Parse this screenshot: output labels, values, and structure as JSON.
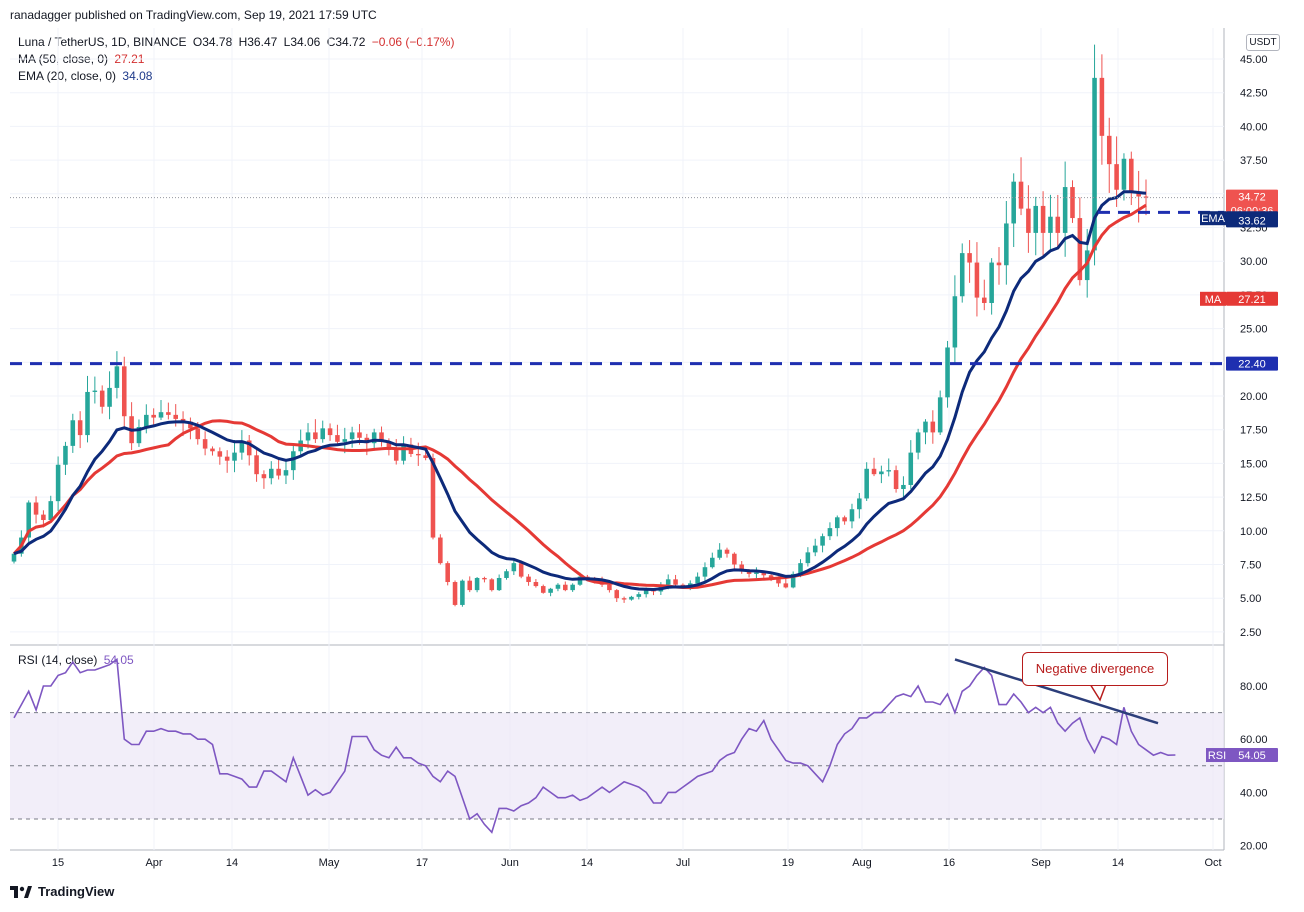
{
  "publisher": "ranadagger published on TradingView.com, Sep 19, 2021 17:59 UTC",
  "footer_logo_text": "TradingView",
  "currency_badge": "USDT",
  "legend": {
    "symbol": "Luna / TetherUS, 1D, BINANCE",
    "o": "O34.78",
    "h": "H36.47",
    "l": "L34.06",
    "c": "C34.72",
    "chg": "−0.06 (−0.17%)",
    "ma_label": "MA (50, close, 0)",
    "ma_value": "27.21",
    "ema_label": "EMA (20, close, 0)",
    "ema_value": "34.08",
    "rsi_label": "RSI (14, close)",
    "rsi_value": "54.05"
  },
  "annotation": "Negative divergence",
  "colors": {
    "up": "#26a69a",
    "down": "#ef5350",
    "ma": "#e53935",
    "ema": "#0d2a7a",
    "rsi": "#7e57c2",
    "rsi_band": "#ede7f6",
    "level": "#1e2fb0",
    "trendline": "#2c3e7a"
  },
  "chart_data": [
    {
      "type": "candlestick",
      "title": "Luna / TetherUS, 1D, BINANCE",
      "x_ticks": [
        "15",
        "Apr",
        "14",
        "May",
        "17",
        "Jun",
        "14",
        "Jul",
        "19",
        "Aug",
        "16",
        "Sep",
        "14",
        "Oct"
      ],
      "y_ticks": [
        "45.00",
        "42.50",
        "40.00",
        "37.50",
        "35.00",
        "32.50",
        "30.00",
        "27.50",
        "25.00",
        "22.50",
        "20.00",
        "17.50",
        "15.00",
        "12.50",
        "10.00",
        "7.50",
        "5.00",
        "2.50"
      ],
      "ylim": [
        1.5,
        46.8
      ],
      "grid": true,
      "last_price": "34.72",
      "countdown": "06:00:36",
      "ema_tag": "EMA",
      "ema_value": "34.08",
      "level_value_upper": "33.62",
      "ma_tag": "MA",
      "ma_value": "27.21",
      "support_level": "22.40",
      "support_level_value": 22.4,
      "level_upper_value": 33.62,
      "closes": [
        8.3,
        9.5,
        12.1,
        11.2,
        10.8,
        12.2,
        14.9,
        16.3,
        18.2,
        17.1,
        20.3,
        20.4,
        19.2,
        20.6,
        22.2,
        18.5,
        16.5,
        17.7,
        18.6,
        18.4,
        18.8,
        18.6,
        18.3,
        18.1,
        17.6,
        16.8,
        16.1,
        15.9,
        15.5,
        15.2,
        15.8,
        16.7,
        15.6,
        14.2,
        13.9,
        14.6,
        14.1,
        14.5,
        15.9,
        16.7,
        17.3,
        16.8,
        17.6,
        17.1,
        16.6,
        16.8,
        17.3,
        16.9,
        16.5,
        17.3,
        16.6,
        16.0,
        15.2,
        16.4,
        15.7,
        15.6,
        15.4,
        9.5,
        7.6,
        6.2,
        4.5,
        6.3,
        5.6,
        6.5,
        6.4,
        5.6,
        6.5,
        7.0,
        7.6,
        6.6,
        6.2,
        5.9,
        5.4,
        5.7,
        6.0,
        5.6,
        6.0,
        6.6,
        6.5,
        6.3,
        6.0,
        5.6,
        5.0,
        4.9,
        5.1,
        5.3,
        5.6,
        5.5,
        6.0,
        6.4,
        6.0,
        5.8,
        6.1,
        6.6,
        7.3,
        8.0,
        8.6,
        8.3,
        7.5,
        7.0,
        6.8,
        6.9,
        6.7,
        6.4,
        6.1,
        5.8,
        6.8,
        7.6,
        8.4,
        8.9,
        9.6,
        10.2,
        11.0,
        10.7,
        11.6,
        12.4,
        14.6,
        14.2,
        14.4,
        14.5,
        13.1,
        13.4,
        15.8,
        17.3,
        18.1,
        17.3,
        19.9,
        23.6,
        27.4,
        30.6,
        29.9,
        27.3,
        26.9,
        29.9,
        29.7,
        32.8,
        35.9,
        33.9,
        32.1,
        34.1,
        32.1,
        33.3,
        32.1,
        35.5,
        33.2,
        28.6,
        30.8,
        43.6,
        39.3,
        37.2,
        35.3,
        37.6,
        35.1,
        34.8,
        34.72
      ],
      "ma50_endpoints": [
        4.4,
        27.21
      ],
      "ema20_endpoints": [
        6.7,
        34.08
      ]
    },
    {
      "type": "line",
      "title": "RSI (14, close)",
      "y_ticks": [
        "80.00",
        "60.00",
        "40.00",
        "20.00"
      ],
      "ylim": [
        18,
        93
      ],
      "band": [
        30,
        70
      ],
      "midline": 50,
      "last_value": "54.05",
      "tag": "RSI",
      "values": [
        68,
        73,
        78,
        71,
        80,
        80,
        84,
        85,
        89,
        85,
        86,
        86,
        87,
        88,
        90,
        60,
        58,
        58,
        63,
        63,
        64,
        63,
        63,
        62,
        62,
        60,
        60,
        58,
        47,
        47,
        46,
        45,
        42,
        42,
        48,
        48,
        46,
        44,
        53,
        46,
        39,
        41,
        39,
        40,
        44,
        48,
        61,
        61,
        61,
        56,
        54,
        53,
        57,
        53,
        53,
        51,
        50,
        46,
        44,
        48,
        46,
        38,
        30,
        32,
        28,
        25,
        34,
        34,
        33,
        35,
        36,
        38,
        42,
        40,
        38,
        38,
        39,
        37,
        38,
        40,
        42,
        40,
        42,
        44,
        43,
        42,
        40,
        36,
        36,
        40,
        40,
        42,
        44,
        46,
        47,
        48,
        52,
        54,
        55,
        60,
        64,
        63,
        67,
        60,
        56,
        52,
        51,
        51,
        50,
        47,
        44,
        50,
        58,
        62,
        64,
        68,
        68,
        70,
        70,
        73,
        76,
        77,
        76,
        80,
        74,
        74,
        73,
        77,
        70,
        78,
        80,
        84,
        87,
        84,
        73,
        73,
        77,
        74,
        70,
        72,
        70,
        72,
        66,
        63,
        66,
        68,
        60,
        55,
        61,
        60,
        58,
        72,
        63,
        58,
        56,
        54,
        55,
        54,
        54.05
      ]
    }
  ]
}
